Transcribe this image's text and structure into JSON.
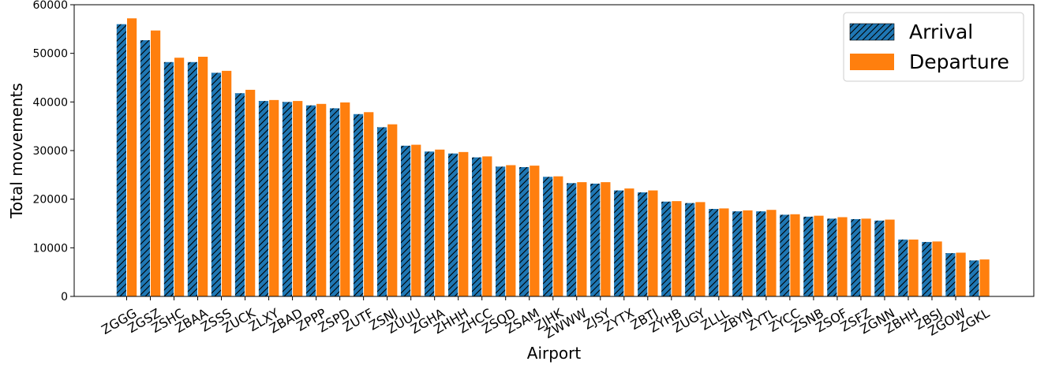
{
  "chart_data": {
    "type": "bar",
    "title": "",
    "xlabel": "Airport",
    "ylabel": "Total movements",
    "ylim": [
      0,
      60000
    ],
    "yticks": [
      0,
      10000,
      20000,
      30000,
      40000,
      50000,
      60000
    ],
    "grid": false,
    "legend_position": "top-right",
    "categories": [
      "ZGGG",
      "ZGSZ",
      "ZSHC",
      "ZBAA",
      "ZSSS",
      "ZUCK",
      "ZLXY",
      "ZBAD",
      "ZPPP",
      "ZSPD",
      "ZUTF",
      "ZSNJ",
      "ZUUU",
      "ZGHA",
      "ZHHH",
      "ZHCC",
      "ZSQD",
      "ZSAM",
      "ZJHK",
      "ZWWW",
      "ZJSY",
      "ZYTX",
      "ZBTJ",
      "ZYHB",
      "ZUGY",
      "ZLLL",
      "ZBYN",
      "ZYTL",
      "ZYCC",
      "ZSNB",
      "ZSOF",
      "ZSFZ",
      "ZGNN",
      "ZBHH",
      "ZBSJ",
      "ZGOW",
      "ZGKL"
    ],
    "series": [
      {
        "name": "Arrival",
        "color": "#1f77b4",
        "hatch": "diagonal",
        "values": [
          56000,
          52700,
          48200,
          48200,
          46000,
          41800,
          40200,
          40000,
          39300,
          38700,
          37500,
          34800,
          31000,
          29800,
          29400,
          28600,
          26700,
          26600,
          24600,
          23300,
          23200,
          21800,
          21400,
          19500,
          19200,
          18000,
          17500,
          17500,
          16800,
          16400,
          16000,
          15900,
          15600,
          11700,
          11200,
          8900,
          7400
        ]
      },
      {
        "name": "Departure",
        "color": "#ff7f0e",
        "hatch": "none",
        "values": [
          57200,
          54700,
          49100,
          49300,
          46400,
          42500,
          40400,
          40200,
          39600,
          39900,
          37900,
          35400,
          31200,
          30200,
          29700,
          28800,
          27000,
          26900,
          24700,
          23500,
          23500,
          22200,
          21800,
          19600,
          19400,
          18100,
          17700,
          17800,
          16900,
          16600,
          16300,
          16000,
          15800,
          11700,
          11300,
          9000,
          7600
        ]
      }
    ]
  }
}
